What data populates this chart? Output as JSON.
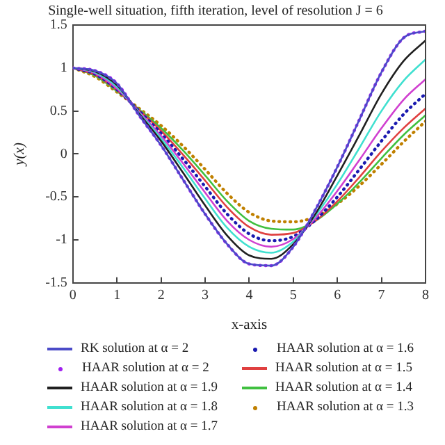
{
  "chart_data": {
    "type": "line",
    "title": "Single-well situation, fifth iteration, level of resolution J = 6",
    "xlabel": "x-axis",
    "ylabel": "y(x)",
    "x": [
      0,
      0.5,
      1,
      1.5,
      2,
      2.5,
      3,
      3.5,
      4,
      4.5,
      5,
      5.5,
      6,
      6.5,
      7,
      7.5,
      8
    ],
    "xlim": [
      0,
      8
    ],
    "xticks": [
      0,
      1,
      2,
      3,
      4,
      5,
      6,
      7,
      8
    ],
    "ylim": [
      -1.5,
      1.5
    ],
    "yticks": [
      -1.5,
      -1,
      -0.5,
      0,
      0.5,
      1,
      1.5
    ],
    "grid": false,
    "legend": "bottom",
    "marker": "none",
    "series": [
      {
        "name": "RK solution at α = 2",
        "color": "#4b4bc8",
        "line_style": "solid",
        "values": [
          1,
          0.97,
          0.82,
          0.45,
          0.1,
          -0.3,
          -0.7,
          -1.05,
          -1.28,
          -1.3,
          -1.08,
          -0.65,
          -0.15,
          0.4,
          0.95,
          1.35,
          1.43
        ]
      },
      {
        "name": "HAAR solution at α = 2",
        "color": "#a020f0",
        "line_style": "dotted",
        "values": [
          1,
          0.97,
          0.82,
          0.45,
          0.1,
          -0.3,
          -0.7,
          -1.05,
          -1.28,
          -1.3,
          -1.08,
          -0.65,
          -0.15,
          0.4,
          0.95,
          1.35,
          1.43
        ]
      },
      {
        "name": "HAAR solution at α = 1.9",
        "color": "#202020",
        "line_style": "solid",
        "values": [
          1,
          0.96,
          0.8,
          0.47,
          0.15,
          -0.22,
          -0.6,
          -0.95,
          -1.18,
          -1.22,
          -1.05,
          -0.7,
          -0.25,
          0.22,
          0.7,
          1.08,
          1.32
        ]
      },
      {
        "name": "HAAR solution at α = 1.8",
        "color": "#40e0d0",
        "line_style": "solid",
        "values": [
          1,
          0.95,
          0.78,
          0.48,
          0.18,
          -0.16,
          -0.52,
          -0.86,
          -1.08,
          -1.15,
          -1.02,
          -0.72,
          -0.35,
          0.07,
          0.5,
          0.85,
          1.1
        ]
      },
      {
        "name": "HAAR solution at α = 1.7",
        "color": "#d040d0",
        "line_style": "solid",
        "values": [
          1,
          0.94,
          0.76,
          0.49,
          0.21,
          -0.11,
          -0.45,
          -0.78,
          -1.0,
          -1.08,
          -0.99,
          -0.75,
          -0.43,
          -0.07,
          0.3,
          0.63,
          0.87
        ]
      },
      {
        "name": "HAAR solution at α = 1.6",
        "color": "#1a1ab0",
        "line_style": "dotted",
        "values": [
          1,
          0.93,
          0.75,
          0.5,
          0.24,
          -0.06,
          -0.38,
          -0.7,
          -0.93,
          -1.01,
          -0.96,
          -0.77,
          -0.5,
          -0.18,
          0.15,
          0.46,
          0.7
        ]
      },
      {
        "name": "HAAR solution at α = 1.5",
        "color": "#e04040",
        "line_style": "solid",
        "values": [
          1,
          0.92,
          0.74,
          0.51,
          0.27,
          -0.01,
          -0.31,
          -0.62,
          -0.85,
          -0.94,
          -0.92,
          -0.78,
          -0.55,
          -0.27,
          0.03,
          0.3,
          0.53
        ]
      },
      {
        "name": "HAAR solution at α = 1.4",
        "color": "#40c040",
        "line_style": "solid",
        "values": [
          1,
          0.91,
          0.73,
          0.52,
          0.3,
          0.04,
          -0.25,
          -0.55,
          -0.78,
          -0.87,
          -0.88,
          -0.78,
          -0.58,
          -0.33,
          -0.05,
          0.22,
          0.45
        ]
      },
      {
        "name": "HAAR solution at α = 1.3",
        "color": "#c08000",
        "line_style": "dotted",
        "values": [
          1,
          0.9,
          0.72,
          0.53,
          0.33,
          0.09,
          -0.18,
          -0.46,
          -0.68,
          -0.78,
          -0.79,
          -0.73,
          -0.58,
          -0.37,
          -0.12,
          0.14,
          0.38
        ]
      }
    ]
  }
}
